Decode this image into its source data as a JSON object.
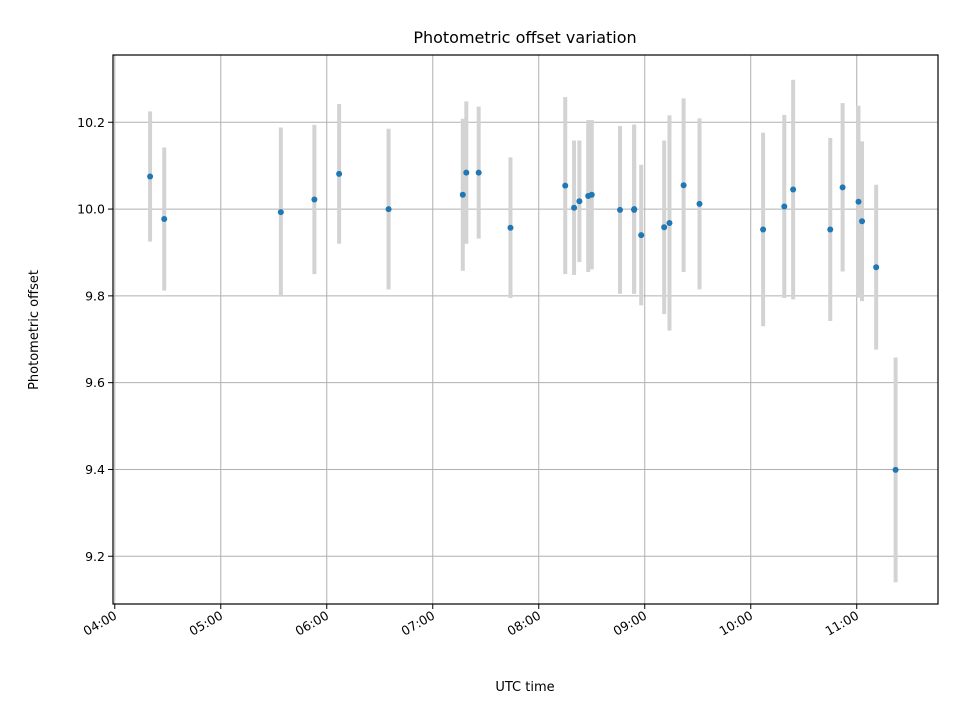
{
  "chart_data": {
    "type": "scatter",
    "title": "Photometric offset variation",
    "xlabel": "UTC time",
    "ylabel": "Photometric offset",
    "x_unit": "UTC time (HH:MM)",
    "xlim": [
      "03:59",
      "11:46"
    ],
    "ylim": [
      9.09,
      10.355
    ],
    "grid": true,
    "x_ticks": [
      "04:00",
      "05:00",
      "06:00",
      "07:00",
      "08:00",
      "09:00",
      "10:00",
      "11:00"
    ],
    "y_ticks": [
      9.2,
      9.4,
      9.6,
      9.8,
      10.0,
      10.2
    ],
    "y_tick_labels": [
      "9.2",
      "9.4",
      "9.6",
      "9.8",
      "10.0",
      "10.2"
    ],
    "colors": {
      "marker": "#1f77b4",
      "errorbar": "#d3d3d3",
      "grid": "#b0b0b0"
    },
    "points": [
      {
        "x": "04:20",
        "y": 10.075,
        "lo": 9.925,
        "hi": 10.225
      },
      {
        "x": "04:28",
        "y": 9.977,
        "lo": 9.812,
        "hi": 10.142
      },
      {
        "x": "05:34",
        "y": 9.993,
        "lo": 9.798,
        "hi": 10.188
      },
      {
        "x": "05:53",
        "y": 10.022,
        "lo": 9.85,
        "hi": 10.194
      },
      {
        "x": "06:07",
        "y": 10.081,
        "lo": 9.92,
        "hi": 10.242
      },
      {
        "x": "06:35",
        "y": 10.0,
        "lo": 9.815,
        "hi": 10.185
      },
      {
        "x": "07:17",
        "y": 10.033,
        "lo": 9.858,
        "hi": 10.208
      },
      {
        "x": "07:19",
        "y": 10.084,
        "lo": 9.92,
        "hi": 10.248
      },
      {
        "x": "07:26",
        "y": 10.084,
        "lo": 9.932,
        "hi": 10.236
      },
      {
        "x": "07:44",
        "y": 9.957,
        "lo": 9.795,
        "hi": 10.119
      },
      {
        "x": "08:15",
        "y": 10.054,
        "lo": 9.85,
        "hi": 10.258
      },
      {
        "x": "08:20",
        "y": 10.003,
        "lo": 9.848,
        "hi": 10.158
      },
      {
        "x": "08:23",
        "y": 10.018,
        "lo": 9.878,
        "hi": 10.158
      },
      {
        "x": "08:28",
        "y": 10.03,
        "lo": 9.855,
        "hi": 10.205
      },
      {
        "x": "08:30",
        "y": 10.033,
        "lo": 9.861,
        "hi": 10.205
      },
      {
        "x": "08:46",
        "y": 9.998,
        "lo": 9.805,
        "hi": 10.191
      },
      {
        "x": "08:54",
        "y": 10.0,
        "lo": 9.805,
        "hi": 10.195
      },
      {
        "x": "08:54",
        "y": 9.998,
        "lo": 9.805,
        "hi": 10.191
      },
      {
        "x": "08:58",
        "y": 9.94,
        "lo": 9.778,
        "hi": 10.102
      },
      {
        "x": "09:11",
        "y": 9.958,
        "lo": 9.758,
        "hi": 10.158
      },
      {
        "x": "09:14",
        "y": 9.968,
        "lo": 9.72,
        "hi": 10.216
      },
      {
        "x": "09:22",
        "y": 10.055,
        "lo": 9.855,
        "hi": 10.255
      },
      {
        "x": "09:31",
        "y": 10.012,
        "lo": 9.815,
        "hi": 10.209
      },
      {
        "x": "10:07",
        "y": 9.953,
        "lo": 9.73,
        "hi": 10.176
      },
      {
        "x": "10:19",
        "y": 10.006,
        "lo": 9.795,
        "hi": 10.217
      },
      {
        "x": "10:24",
        "y": 10.045,
        "lo": 9.792,
        "hi": 10.298
      },
      {
        "x": "10:45",
        "y": 9.953,
        "lo": 9.742,
        "hi": 10.164
      },
      {
        "x": "10:52",
        "y": 10.05,
        "lo": 9.856,
        "hi": 10.244
      },
      {
        "x": "11:01",
        "y": 10.017,
        "lo": 9.796,
        "hi": 10.238
      },
      {
        "x": "11:03",
        "y": 9.972,
        "lo": 9.788,
        "hi": 10.156
      },
      {
        "x": "11:11",
        "y": 9.866,
        "lo": 9.676,
        "hi": 10.056
      },
      {
        "x": "11:22",
        "y": 9.399,
        "lo": 9.14,
        "hi": 9.658
      }
    ]
  }
}
